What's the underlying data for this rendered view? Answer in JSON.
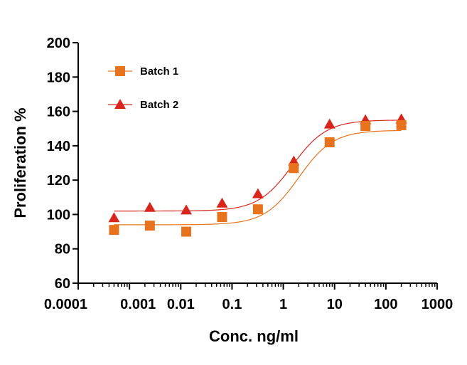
{
  "chart_data": {
    "type": "scatter",
    "title": "",
    "xlabel": "Conc. ng/ml",
    "ylabel": "Proliferation %",
    "xscale": "log",
    "xlim": [
      0.0001,
      1000
    ],
    "ylim": [
      60,
      200
    ],
    "x_ticks": [
      {
        "value": 0.0001,
        "label": "0.0001"
      },
      {
        "value": 0.001,
        "label": "0.001"
      },
      {
        "value": 0.01,
        "label": "0.01"
      },
      {
        "value": 0.1,
        "label": "0.1"
      },
      {
        "value": 1,
        "label": "1"
      },
      {
        "value": 10,
        "label": "10"
      },
      {
        "value": 100,
        "label": "100"
      },
      {
        "value": 1000,
        "label": "1000"
      }
    ],
    "y_ticks": [
      {
        "value": 60,
        "label": "60"
      },
      {
        "value": 80,
        "label": "80"
      },
      {
        "value": 100,
        "label": "100"
      },
      {
        "value": 120,
        "label": "120"
      },
      {
        "value": 140,
        "label": "140"
      },
      {
        "value": 160,
        "label": "160"
      },
      {
        "value": 180,
        "label": "180"
      },
      {
        "value": 200,
        "label": "200"
      }
    ],
    "grid": false,
    "legend_position": "top-left",
    "series": [
      {
        "name": "Batch 1",
        "marker": "square",
        "color": "#E8731E",
        "x": [
          0.0005,
          0.0025,
          0.0128,
          0.064,
          0.32,
          1.6,
          8,
          40,
          200
        ],
        "y": [
          91,
          93.5,
          90,
          98.5,
          103,
          127,
          142,
          151.5,
          152
        ],
        "fit": {
          "bottom": 94,
          "top": 149,
          "ec50": 2.0,
          "hill": 1.3
        }
      },
      {
        "name": "Batch 2",
        "marker": "triangle",
        "color": "#D9261C",
        "x": [
          0.0005,
          0.0025,
          0.0128,
          0.064,
          0.32,
          1.6,
          8,
          40,
          200
        ],
        "y": [
          98,
          104,
          102.5,
          106.5,
          112,
          131,
          152.5,
          155,
          155.5
        ],
        "fit": {
          "bottom": 102,
          "top": 155,
          "ec50": 1.5,
          "hill": 1.3
        }
      }
    ]
  }
}
